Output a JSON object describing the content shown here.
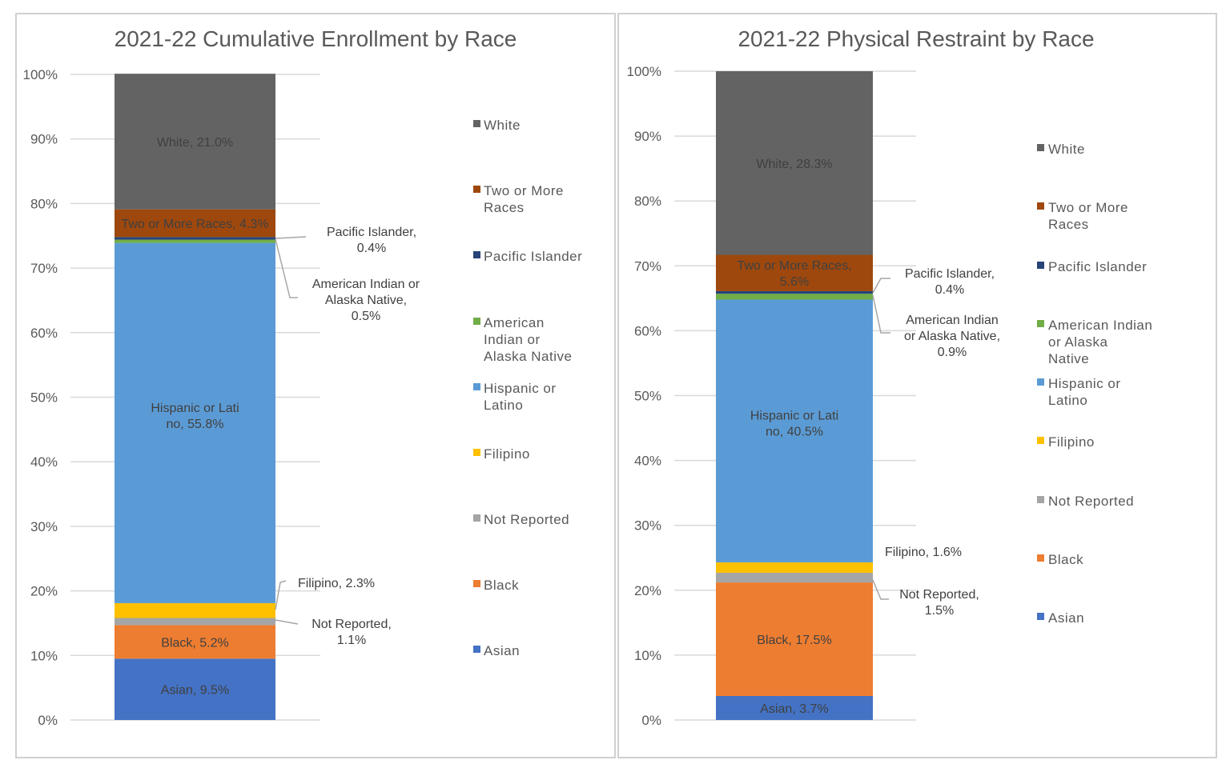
{
  "chart_data": [
    {
      "type": "bar",
      "title": "2021-22 Cumulative Enrollment by Race",
      "stacked": true,
      "ylim": [
        0,
        100
      ],
      "yticks": [
        "0%",
        "10%",
        "20%",
        "30%",
        "40%",
        "50%",
        "60%",
        "70%",
        "80%",
        "90%",
        "100%"
      ],
      "grid": true,
      "legend_position": "right",
      "series": [
        {
          "name": "Asian",
          "value": 9.5,
          "label": "Asian, 9.5%",
          "color": "#4472c4"
        },
        {
          "name": "Black",
          "value": 5.2,
          "label": "Black, 5.2%",
          "color": "#ed7d31"
        },
        {
          "name": "Not Reported",
          "value": 1.1,
          "label": "Not Reported, 1.1%",
          "color": "#a5a5a5"
        },
        {
          "name": "Filipino",
          "value": 2.3,
          "label": "Filipino, 2.3%",
          "color": "#ffc000"
        },
        {
          "name": "Hispanic or Latino",
          "value": 55.8,
          "label": "Hispanic or Latino, 55.8%",
          "color": "#5b9bd5"
        },
        {
          "name": "American Indian or Alaska Native",
          "value": 0.5,
          "label": "American Indian or Alaska Native, 0.5%",
          "color": "#70ad47"
        },
        {
          "name": "Pacific Islander",
          "value": 0.4,
          "label": "Pacific Islander, 0.4%",
          "color": "#264478"
        },
        {
          "name": "Two or More Races",
          "value": 4.3,
          "label": "Two or More Races, 4.3%",
          "color": "#9e480e"
        },
        {
          "name": "White",
          "value": 21.0,
          "label": "White, 21.0%",
          "color": "#636363"
        }
      ]
    },
    {
      "type": "bar",
      "title": "2021-22 Physical Restraint by Race",
      "stacked": true,
      "ylim": [
        0,
        100
      ],
      "yticks": [
        "0%",
        "10%",
        "20%",
        "30%",
        "40%",
        "50%",
        "60%",
        "70%",
        "80%",
        "90%",
        "100%"
      ],
      "grid": true,
      "legend_position": "right",
      "series": [
        {
          "name": "Asian",
          "value": 3.7,
          "label": "Asian, 3.7%",
          "color": "#4472c4"
        },
        {
          "name": "Black",
          "value": 17.5,
          "label": "Black, 17.5%",
          "color": "#ed7d31"
        },
        {
          "name": "Not Reported",
          "value": 1.5,
          "label": "Not Reported, 1.5%",
          "color": "#a5a5a5"
        },
        {
          "name": "Filipino",
          "value": 1.6,
          "label": "Filipino, 1.6%",
          "color": "#ffc000"
        },
        {
          "name": "Hispanic or Latino",
          "value": 40.5,
          "label": "Hispanic or Latino, 40.5%",
          "color": "#5b9bd5"
        },
        {
          "name": "American Indian or Alaska Native",
          "value": 0.9,
          "label": "American Indian or Alaska Native, 0.9%",
          "color": "#70ad47"
        },
        {
          "name": "Pacific Islander",
          "value": 0.4,
          "label": "Pacific Islander, 0.4%",
          "color": "#264478"
        },
        {
          "name": "Two or More Races",
          "value": 5.6,
          "label": "Two or More Races, 5.6%",
          "color": "#9e480e"
        },
        {
          "name": "White",
          "value": 28.3,
          "label": "White, 28.3%",
          "color": "#636363"
        }
      ]
    }
  ]
}
